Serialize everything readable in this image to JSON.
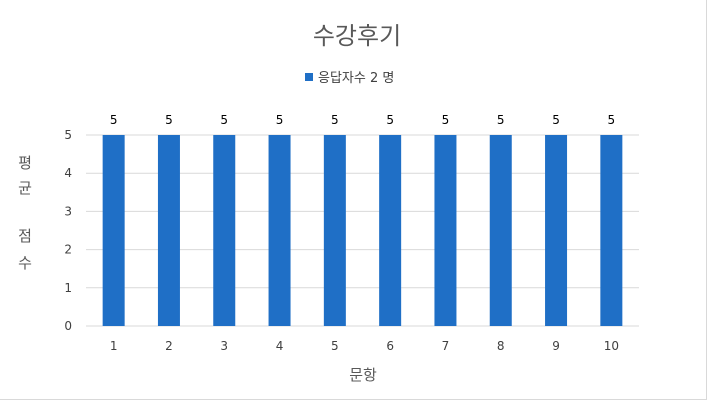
{
  "chart_data": {
    "type": "bar",
    "title": "수강후기",
    "series": [
      {
        "name": "응답자수 2 명",
        "values": [
          5,
          5,
          5,
          5,
          5,
          5,
          5,
          5,
          5,
          5
        ]
      }
    ],
    "categories": [
      "1",
      "2",
      "3",
      "4",
      "5",
      "6",
      "7",
      "8",
      "9",
      "10"
    ],
    "xlabel": "문항",
    "ylabel": "평균 점수",
    "ylabel_lines": [
      "평",
      "균",
      "점",
      "수"
    ],
    "ylim": [
      0,
      5
    ],
    "yticks": [
      0,
      1,
      2,
      3,
      4,
      5
    ],
    "data_labels": true,
    "grid": true,
    "legend_position": "top",
    "bar_color": "#1f6fc6",
    "grid_color": "#d9d9d9"
  }
}
